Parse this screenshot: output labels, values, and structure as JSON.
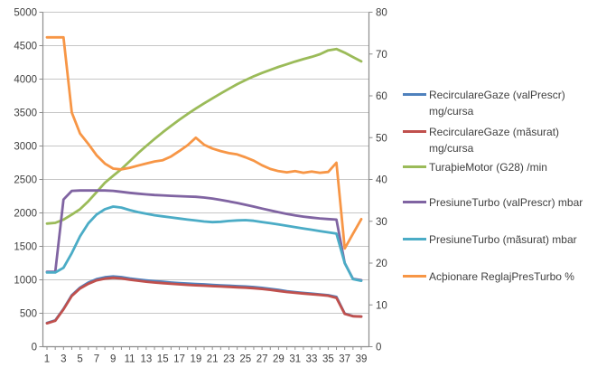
{
  "chart_data": {
    "type": "line",
    "title": "",
    "x_label": "",
    "x": [
      1,
      2,
      3,
      4,
      5,
      6,
      7,
      8,
      9,
      10,
      11,
      12,
      13,
      14,
      15,
      16,
      17,
      18,
      19,
      20,
      21,
      22,
      23,
      24,
      25,
      26,
      27,
      28,
      29,
      30,
      31,
      32,
      33,
      34,
      35,
      36,
      37,
      38,
      39
    ],
    "x_tick_labels": [
      "1",
      "3",
      "5",
      "7",
      "9",
      "11",
      "13",
      "15",
      "17",
      "19",
      "21",
      "23",
      "25",
      "27",
      "29",
      "31",
      "33",
      "35",
      "37",
      "39"
    ],
    "grid": true,
    "legend_position": "right",
    "axes": {
      "left": {
        "min": 0,
        "max": 5000,
        "step": 500,
        "ticks": [
          "0",
          "500",
          "1000",
          "1500",
          "2000",
          "2500",
          "3000",
          "3500",
          "4000",
          "4500",
          "5000"
        ]
      },
      "right": {
        "min": 0,
        "max": 80,
        "step": 10,
        "ticks": [
          "0",
          "10",
          "20",
          "30",
          "40",
          "50",
          "60",
          "70",
          "80"
        ]
      }
    },
    "series": [
      {
        "name": "RecirculareGaze (valPrescr)  mg/cursa",
        "axis": "left",
        "color": "#4F81BD",
        "values": [
          355,
          395,
          565,
          770,
          882,
          958,
          1010,
          1038,
          1050,
          1040,
          1020,
          1005,
          992,
          980,
          970,
          960,
          952,
          945,
          938,
          932,
          925,
          918,
          912,
          906,
          900,
          892,
          880,
          865,
          848,
          830,
          816,
          804,
          793,
          782,
          770,
          745,
          495,
          458,
          452
        ]
      },
      {
        "name": "RecirculareGaze (mãsurat)  mg/cursa",
        "axis": "left",
        "color": "#C0504D",
        "values": [
          350,
          388,
          558,
          760,
          870,
          940,
          992,
          1018,
          1030,
          1020,
          1002,
          986,
          972,
          960,
          950,
          940,
          932,
          925,
          918,
          912,
          906,
          900,
          894,
          888,
          882,
          875,
          864,
          850,
          834,
          818,
          805,
          794,
          784,
          774,
          762,
          730,
          490,
          456,
          450
        ]
      },
      {
        "name": "TuraþieMotor (G28)  /min",
        "axis": "left",
        "color": "#9BBB59",
        "values": [
          1840,
          1852,
          1900,
          1975,
          2055,
          2175,
          2310,
          2450,
          2556,
          2655,
          2772,
          2890,
          3000,
          3105,
          3205,
          3300,
          3392,
          3478,
          3560,
          3638,
          3712,
          3785,
          3856,
          3925,
          3985,
          4042,
          4092,
          4138,
          4182,
          4222,
          4262,
          4298,
          4332,
          4372,
          4430,
          4450,
          4395,
          4330,
          4265
        ]
      },
      {
        "name": "PresiuneTurbo (valPrescr)  mbar",
        "axis": "left",
        "color": "#8064A2",
        "values": [
          1120,
          1120,
          2200,
          2330,
          2335,
          2335,
          2335,
          2335,
          2330,
          2315,
          2300,
          2288,
          2277,
          2268,
          2262,
          2256,
          2250,
          2245,
          2240,
          2230,
          2215,
          2195,
          2172,
          2148,
          2122,
          2095,
          2065,
          2038,
          2010,
          1985,
          1962,
          1945,
          1930,
          1918,
          1908,
          1900,
          1250,
          1015,
          995
        ]
      },
      {
        "name": "PresiuneTurbo (mãsurat)  mbar",
        "axis": "left",
        "color": "#4BACC6",
        "values": [
          1110,
          1110,
          1180,
          1400,
          1650,
          1845,
          1975,
          2055,
          2095,
          2080,
          2042,
          2012,
          1988,
          1965,
          1948,
          1932,
          1916,
          1900,
          1886,
          1872,
          1862,
          1868,
          1880,
          1888,
          1892,
          1882,
          1864,
          1846,
          1828,
          1808,
          1788,
          1768,
          1748,
          1728,
          1710,
          1690,
          1250,
          1010,
          985
        ]
      },
      {
        "name": "Acþionare ReglajPresTurbo  %",
        "axis": "right",
        "color": "#F79646",
        "values": [
          74,
          74,
          74,
          56,
          51,
          48.5,
          45.8,
          43.8,
          42.6,
          42.4,
          42.8,
          43.3,
          43.8,
          44.3,
          44.6,
          45.5,
          46.8,
          48.2,
          50,
          48.3,
          47.4,
          46.8,
          46.3,
          46,
          45.3,
          44.5,
          43.4,
          42.5,
          42,
          41.7,
          42,
          41.6,
          41.9,
          41.6,
          41.8,
          44,
          23.5,
          27,
          30.5
        ]
      }
    ]
  },
  "legend": {
    "items": [
      {
        "line1": "RecirculareGaze (valPrescr)",
        "line2": "mg/cursa"
      },
      {
        "line1": "RecirculareGaze (mãsurat)",
        "line2": "mg/cursa"
      },
      {
        "line1": "TuraþieMotor (G28)  /min",
        "line2": ""
      },
      {
        "line1": "PresiuneTurbo (valPrescr)  mbar",
        "line2": ""
      },
      {
        "line1": "PresiuneTurbo (mãsurat)  mbar",
        "line2": ""
      },
      {
        "line1": "Acþionare ReglajPresTurbo  %",
        "line2": ""
      }
    ]
  },
  "colors": {
    "gridline": "#C6C6C6",
    "axis_line": "#8C8C8C",
    "tick_text": "#3f3f3f",
    "background": "#ffffff"
  }
}
